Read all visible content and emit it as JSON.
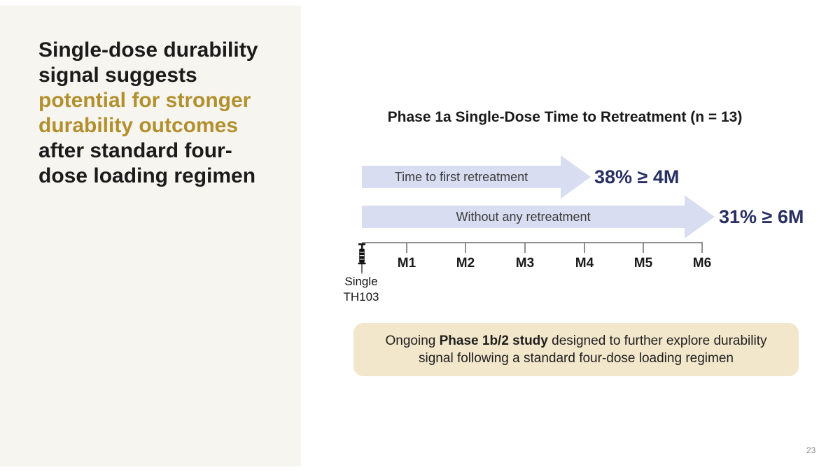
{
  "left_panel": {
    "headline_segments": [
      {
        "text": "Single-dose durability signal suggests ",
        "class": "seg-dark"
      },
      {
        "text": "potential for stronger durability outcomes",
        "class": "seg-gold"
      },
      {
        "text": " after standard four-dose loading regimen",
        "class": "seg-dark"
      }
    ]
  },
  "chart": {
    "title": "Phase 1a Single-Dose Time to Retreatment (n = 13)",
    "arrows": [
      {
        "label": "Time to first retreatment",
        "stat": "38% ≥ 4M"
      },
      {
        "label": "Without any retreatment",
        "stat": "31% ≥ 6M"
      }
    ],
    "timeline": {
      "ticks": [
        "M1",
        "M2",
        "M3",
        "M4",
        "M5",
        "M6"
      ],
      "origin_icon": "syringe-icon",
      "origin_label_line1": "Single",
      "origin_label_line2": "TH103"
    }
  },
  "callout": {
    "segments": [
      {
        "text": "Ongoing ",
        "class": ""
      },
      {
        "text": "Phase 1b/2 study",
        "class": "seg-bold"
      },
      {
        "text": " designed to further explore durability signal following a standard four-dose loading regimen",
        "class": ""
      }
    ]
  },
  "footer": {
    "page_number": "23"
  },
  "colors": {
    "panel_cream": "#f7f5ef",
    "headline_gold": "#b2902e",
    "headline_dark": "#1b1b1b",
    "arrow_fill": "#d9ddf2",
    "stat_navy": "#282f62",
    "axis_gray": "#8f8f8f",
    "callout_beige": "#f2e6cb"
  },
  "chart_data": {
    "type": "timeline",
    "title": "Phase 1a Single-Dose Time to Retreatment (n = 13)",
    "n": 13,
    "x_ticks": [
      "Single TH103 (dose)",
      "M1",
      "M2",
      "M3",
      "M4",
      "M5",
      "M6"
    ],
    "series": [
      {
        "name": "Time to first retreatment",
        "value_pct": 38,
        "threshold_months": 4,
        "label": "38% ≥ 4M",
        "span_months": [
          0,
          4
        ]
      },
      {
        "name": "Without any retreatment",
        "value_pct": 31,
        "threshold_months": 6,
        "label": "31% ≥ 6M",
        "span_months": [
          0,
          6
        ]
      }
    ],
    "annotation": "Ongoing Phase 1b/2 study designed to further explore durability signal following a standard four-dose loading regimen"
  }
}
